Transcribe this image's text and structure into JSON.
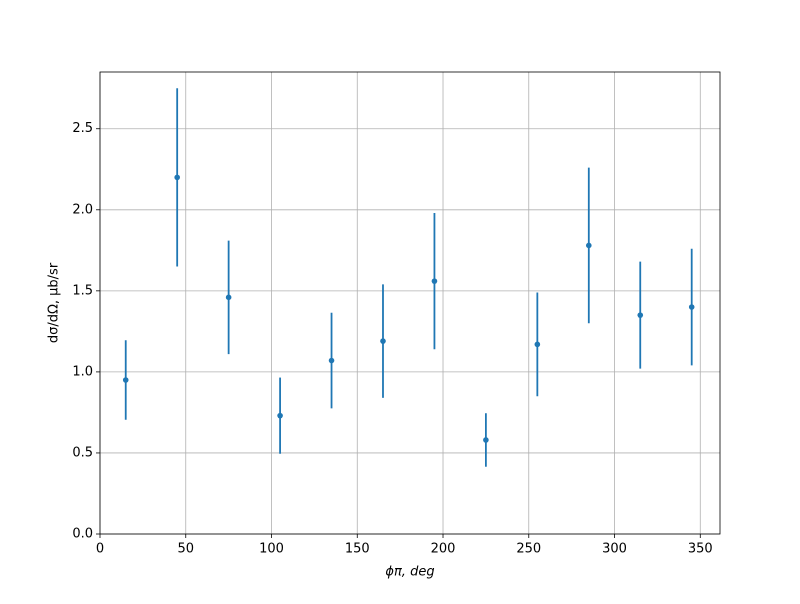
{
  "chart_data": {
    "type": "errorbar",
    "x_label": "ϕπ, deg",
    "y_label": "dσ/dΩ, μb/sr",
    "x": [
      15,
      45,
      75,
      105,
      135,
      165,
      195,
      225,
      255,
      285,
      315,
      345
    ],
    "series": [
      {
        "color": "#1f77b4",
        "values": [
          0.95,
          2.2,
          1.46,
          0.73,
          1.07,
          1.19,
          1.56,
          0.58,
          1.17,
          1.78,
          1.35,
          1.4
        ],
        "errors": [
          0.245,
          0.55,
          0.35,
          0.235,
          0.295,
          0.35,
          0.42,
          0.165,
          0.32,
          0.48,
          0.33,
          0.36
        ]
      }
    ],
    "xlim": [
      0,
      361.5
    ],
    "ylim": [
      0,
      2.85
    ],
    "xticks": [
      0,
      50,
      100,
      150,
      200,
      250,
      300,
      350
    ],
    "yticks": [
      {
        "value": 0,
        "label": "0.0"
      },
      0.5,
      {
        "value": 1,
        "label": "1.0"
      },
      1.5,
      {
        "value": 2,
        "label": "2.0"
      },
      2.5
    ],
    "grid": true
  }
}
